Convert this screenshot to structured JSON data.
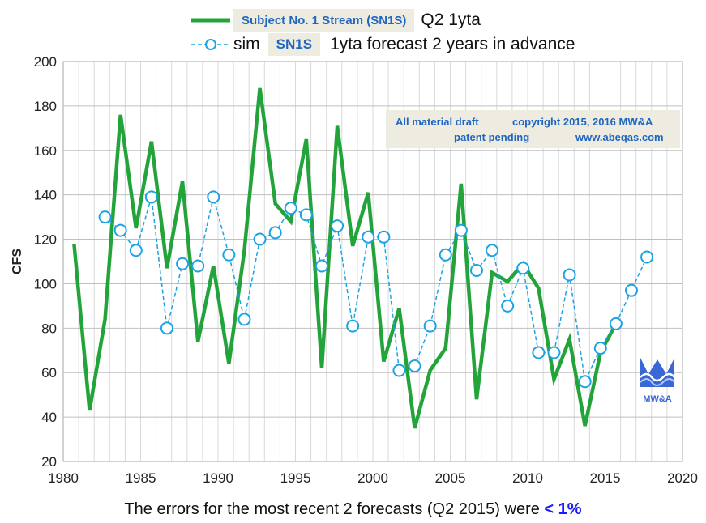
{
  "chart_data": {
    "type": "line",
    "xlim": [
      1980,
      2020
    ],
    "ylim": [
      20,
      200
    ],
    "xticks": [
      "1980",
      "1985",
      "1990",
      "1995",
      "2000",
      "2005",
      "2010",
      "2015",
      "2020"
    ],
    "yticks": [
      "20",
      "40",
      "60",
      "80",
      "100",
      "120",
      "140",
      "160",
      "180",
      "200"
    ],
    "ylabel": "CFS",
    "grid": true,
    "series": [
      {
        "name": "Subject No. 1 Stream (SN1S)",
        "legend_suffix": "Q2 1yta",
        "style": "solid",
        "color": "#22a43a",
        "points": [
          [
            1980.7,
            118
          ],
          [
            1981.7,
            43
          ],
          [
            1982.7,
            84
          ],
          [
            1983.7,
            176
          ],
          [
            1984.7,
            125
          ],
          [
            1985.7,
            164
          ],
          [
            1986.7,
            107
          ],
          [
            1987.7,
            146
          ],
          [
            1988.7,
            74
          ],
          [
            1989.7,
            108
          ],
          [
            1990.7,
            64
          ],
          [
            1991.7,
            115
          ],
          [
            1992.7,
            188
          ],
          [
            1993.7,
            136
          ],
          [
            1994.7,
            128
          ],
          [
            1995.7,
            165
          ],
          [
            1996.7,
            62
          ],
          [
            1997.7,
            171
          ],
          [
            1998.7,
            117
          ],
          [
            1999.7,
            141
          ],
          [
            2000.7,
            65
          ],
          [
            2001.7,
            89
          ],
          [
            2002.7,
            35
          ],
          [
            2003.7,
            61
          ],
          [
            2004.7,
            71
          ],
          [
            2005.7,
            145
          ],
          [
            2006.7,
            48
          ],
          [
            2007.7,
            105
          ],
          [
            2008.7,
            101
          ],
          [
            2009.7,
            109
          ],
          [
            2010.7,
            98
          ],
          [
            2011.7,
            57
          ],
          [
            2012.7,
            75
          ],
          [
            2013.7,
            36
          ],
          [
            2014.7,
            69
          ],
          [
            2015.7,
            82
          ]
        ]
      },
      {
        "name": "sim",
        "legend_box": "SN1S",
        "legend_suffix": "1yta forecast 2 years in advance",
        "style": "dashed-circles",
        "color": "#1ca3e4",
        "points": [
          [
            1982.7,
            130
          ],
          [
            1983.7,
            124
          ],
          [
            1984.7,
            115
          ],
          [
            1985.7,
            139
          ],
          [
            1986.7,
            80
          ],
          [
            1987.7,
            109
          ],
          [
            1988.7,
            108
          ],
          [
            1989.7,
            139
          ],
          [
            1990.7,
            113
          ],
          [
            1991.7,
            84
          ],
          [
            1992.7,
            120
          ],
          [
            1993.7,
            123
          ],
          [
            1994.7,
            134
          ],
          [
            1995.7,
            131
          ],
          [
            1996.7,
            108
          ],
          [
            1997.7,
            126
          ],
          [
            1998.7,
            81
          ],
          [
            1999.7,
            121
          ],
          [
            2000.7,
            121
          ],
          [
            2001.7,
            61
          ],
          [
            2002.7,
            63
          ],
          [
            2003.7,
            81
          ],
          [
            2004.7,
            113
          ],
          [
            2005.7,
            124
          ],
          [
            2006.7,
            106
          ],
          [
            2007.7,
            115
          ],
          [
            2008.7,
            90
          ],
          [
            2009.7,
            107
          ],
          [
            2010.7,
            69
          ],
          [
            2011.7,
            69
          ],
          [
            2012.7,
            104
          ],
          [
            2013.7,
            56
          ],
          [
            2014.7,
            71
          ],
          [
            2015.7,
            82
          ],
          [
            2016.7,
            97
          ],
          [
            2017.7,
            112
          ]
        ]
      }
    ]
  },
  "note": {
    "line1_left": "All material draft",
    "line1_right": "copyright 2015, 2016  MW&A",
    "line2_left": "patent pending",
    "line2_right": "www.abeqas.com"
  },
  "logo": {
    "label": "MW&A",
    "color": "#3b66d6"
  },
  "footer": {
    "text": "The errors for the most recent 2 forecasts (Q2 2015) were",
    "highlight": "< 1%",
    "highlight_color": "#1a1aff"
  }
}
